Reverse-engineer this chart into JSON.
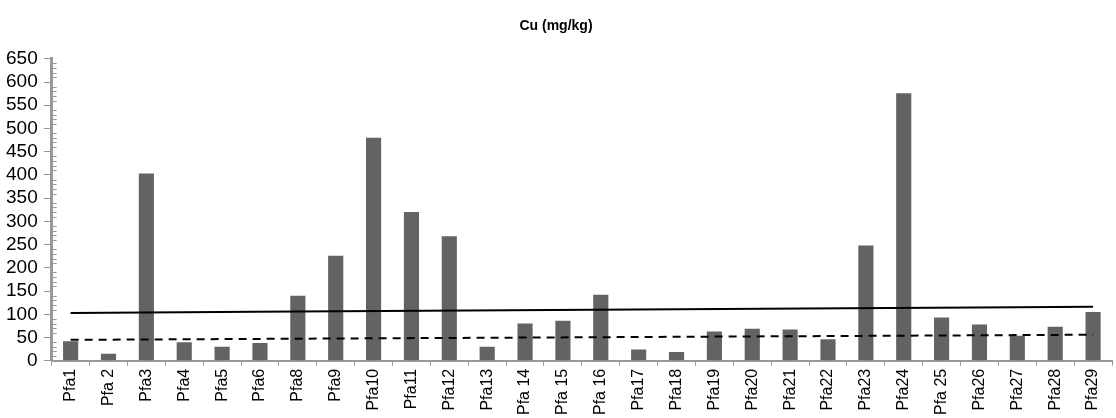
{
  "chart_data": {
    "type": "bar",
    "title": "Cu (mg/kg)",
    "categories": [
      "Pfa1",
      "Pfa 2",
      "Pfa3",
      "Pfa4",
      "Pfa5",
      "Pfa6",
      "Pfa8",
      "Pfa9",
      "Pfa10",
      "Pfa11",
      "Pfa12",
      "Pfa13",
      "Pfa 14",
      "Pfa 15",
      "Pfa 16",
      "Pfa17",
      "Pfa18",
      "Pfa19",
      "Pfa20",
      "Pfa21",
      "Pfa22",
      "Pfa23",
      "Pfa24",
      "Pfa 25",
      "Pfa26",
      "Pfa27",
      "Pfa28",
      "Pfa29"
    ],
    "series": [
      {
        "color": "#636363",
        "values": [
          42,
          15,
          403,
          40,
          30,
          38,
          140,
          226,
          480,
          320,
          268,
          30,
          80,
          86,
          142,
          24,
          19,
          63,
          69,
          67,
          46,
          248,
          576,
          93,
          78,
          54,
          73,
          105
        ]
      },
      {
        "type": "line",
        "color": "#000000",
        "line_style": "solid",
        "x": [
          "Pfa1",
          "Pfa29"
        ],
        "values": [
          103,
          116
        ]
      },
      {
        "type": "line",
        "color": "#000000",
        "line_style": "dashed",
        "x": [
          "Pfa1",
          "Pfa29"
        ],
        "values": [
          45,
          56
        ]
      }
    ],
    "ylim": [
      0,
      650
    ],
    "yticks": [
      0,
      50,
      100,
      150,
      200,
      250,
      300,
      350,
      400,
      450,
      500,
      550,
      600,
      650
    ],
    "grid": false,
    "legend": false,
    "marker": "none"
  }
}
